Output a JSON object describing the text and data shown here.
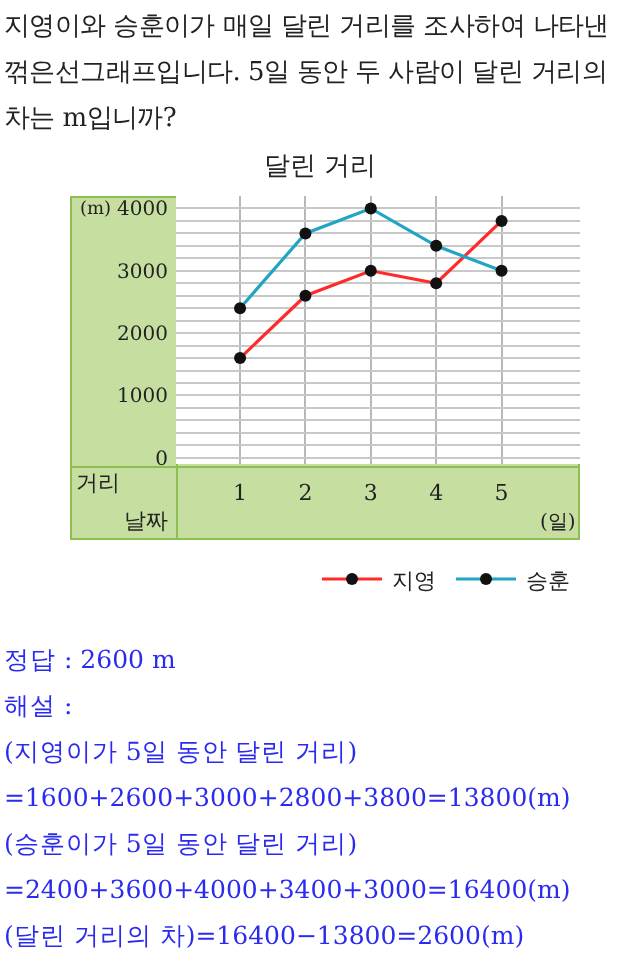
{
  "chart_data": {
    "type": "line",
    "title": "달린 거리",
    "xlabel": "날짜",
    "ylabel": "거리",
    "categories": [
      "1",
      "2",
      "3",
      "4",
      "5"
    ],
    "series": [
      {
        "name": "지영",
        "color": "#ff2a2a",
        "values": [
          1600,
          2600,
          3000,
          2800,
          3800
        ]
      },
      {
        "name": "승훈",
        "color": "#22a5c4",
        "values": [
          2400,
          3600,
          4000,
          3400,
          3000
        ]
      }
    ],
    "ylim": [
      -100,
      4200
    ],
    "yticks": [
      0,
      {
        "value": 200,
        "label": null
      },
      {
        "value": 400,
        "label": null
      },
      {
        "value": 600,
        "label": null
      },
      {
        "value": 800,
        "label": null
      },
      1000,
      {
        "value": 1200,
        "label": null
      },
      {
        "value": 1400,
        "label": null
      },
      {
        "value": 1600,
        "label": null
      },
      {
        "value": 1800,
        "label": null
      },
      2000,
      {
        "value": 2200,
        "label": null
      },
      {
        "value": 2400,
        "label": null
      },
      {
        "value": 2600,
        "label": null
      },
      {
        "value": 2800,
        "label": null
      },
      3000,
      {
        "value": 3200,
        "label": null
      },
      {
        "value": 3400,
        "label": null
      },
      {
        "value": 3600,
        "label": null
      },
      {
        "value": 3800,
        "label": null
      },
      4000,
      {
        "value": 4200,
        "label": null
      }
    ],
    "grid": true,
    "legend": "bottom right",
    "marker": "circle",
    "line_style": "solid",
    "annotations": [
      "지영이와 승훈이가 매일 달린 거리를 조사하여 나타낸 꺾은선그래프입니다. 5일 동안 두 사람이 달린 거리의 차는 m입니까?",
      "(m)",
      "(일)",
      "정답 : 2600 m",
      "해설 :",
      "(지영이가 5일 동안 달린 거리)",
      "=1600+2600+3000+2800+3800=13800(m)",
      "(승훈이가 5일 동안 달린 거리)",
      "=2400+3600+4000+3400+3000=16400(m)",
      "(달린 거리의 차)=16400−13800=2600(m)"
    ]
  }
}
